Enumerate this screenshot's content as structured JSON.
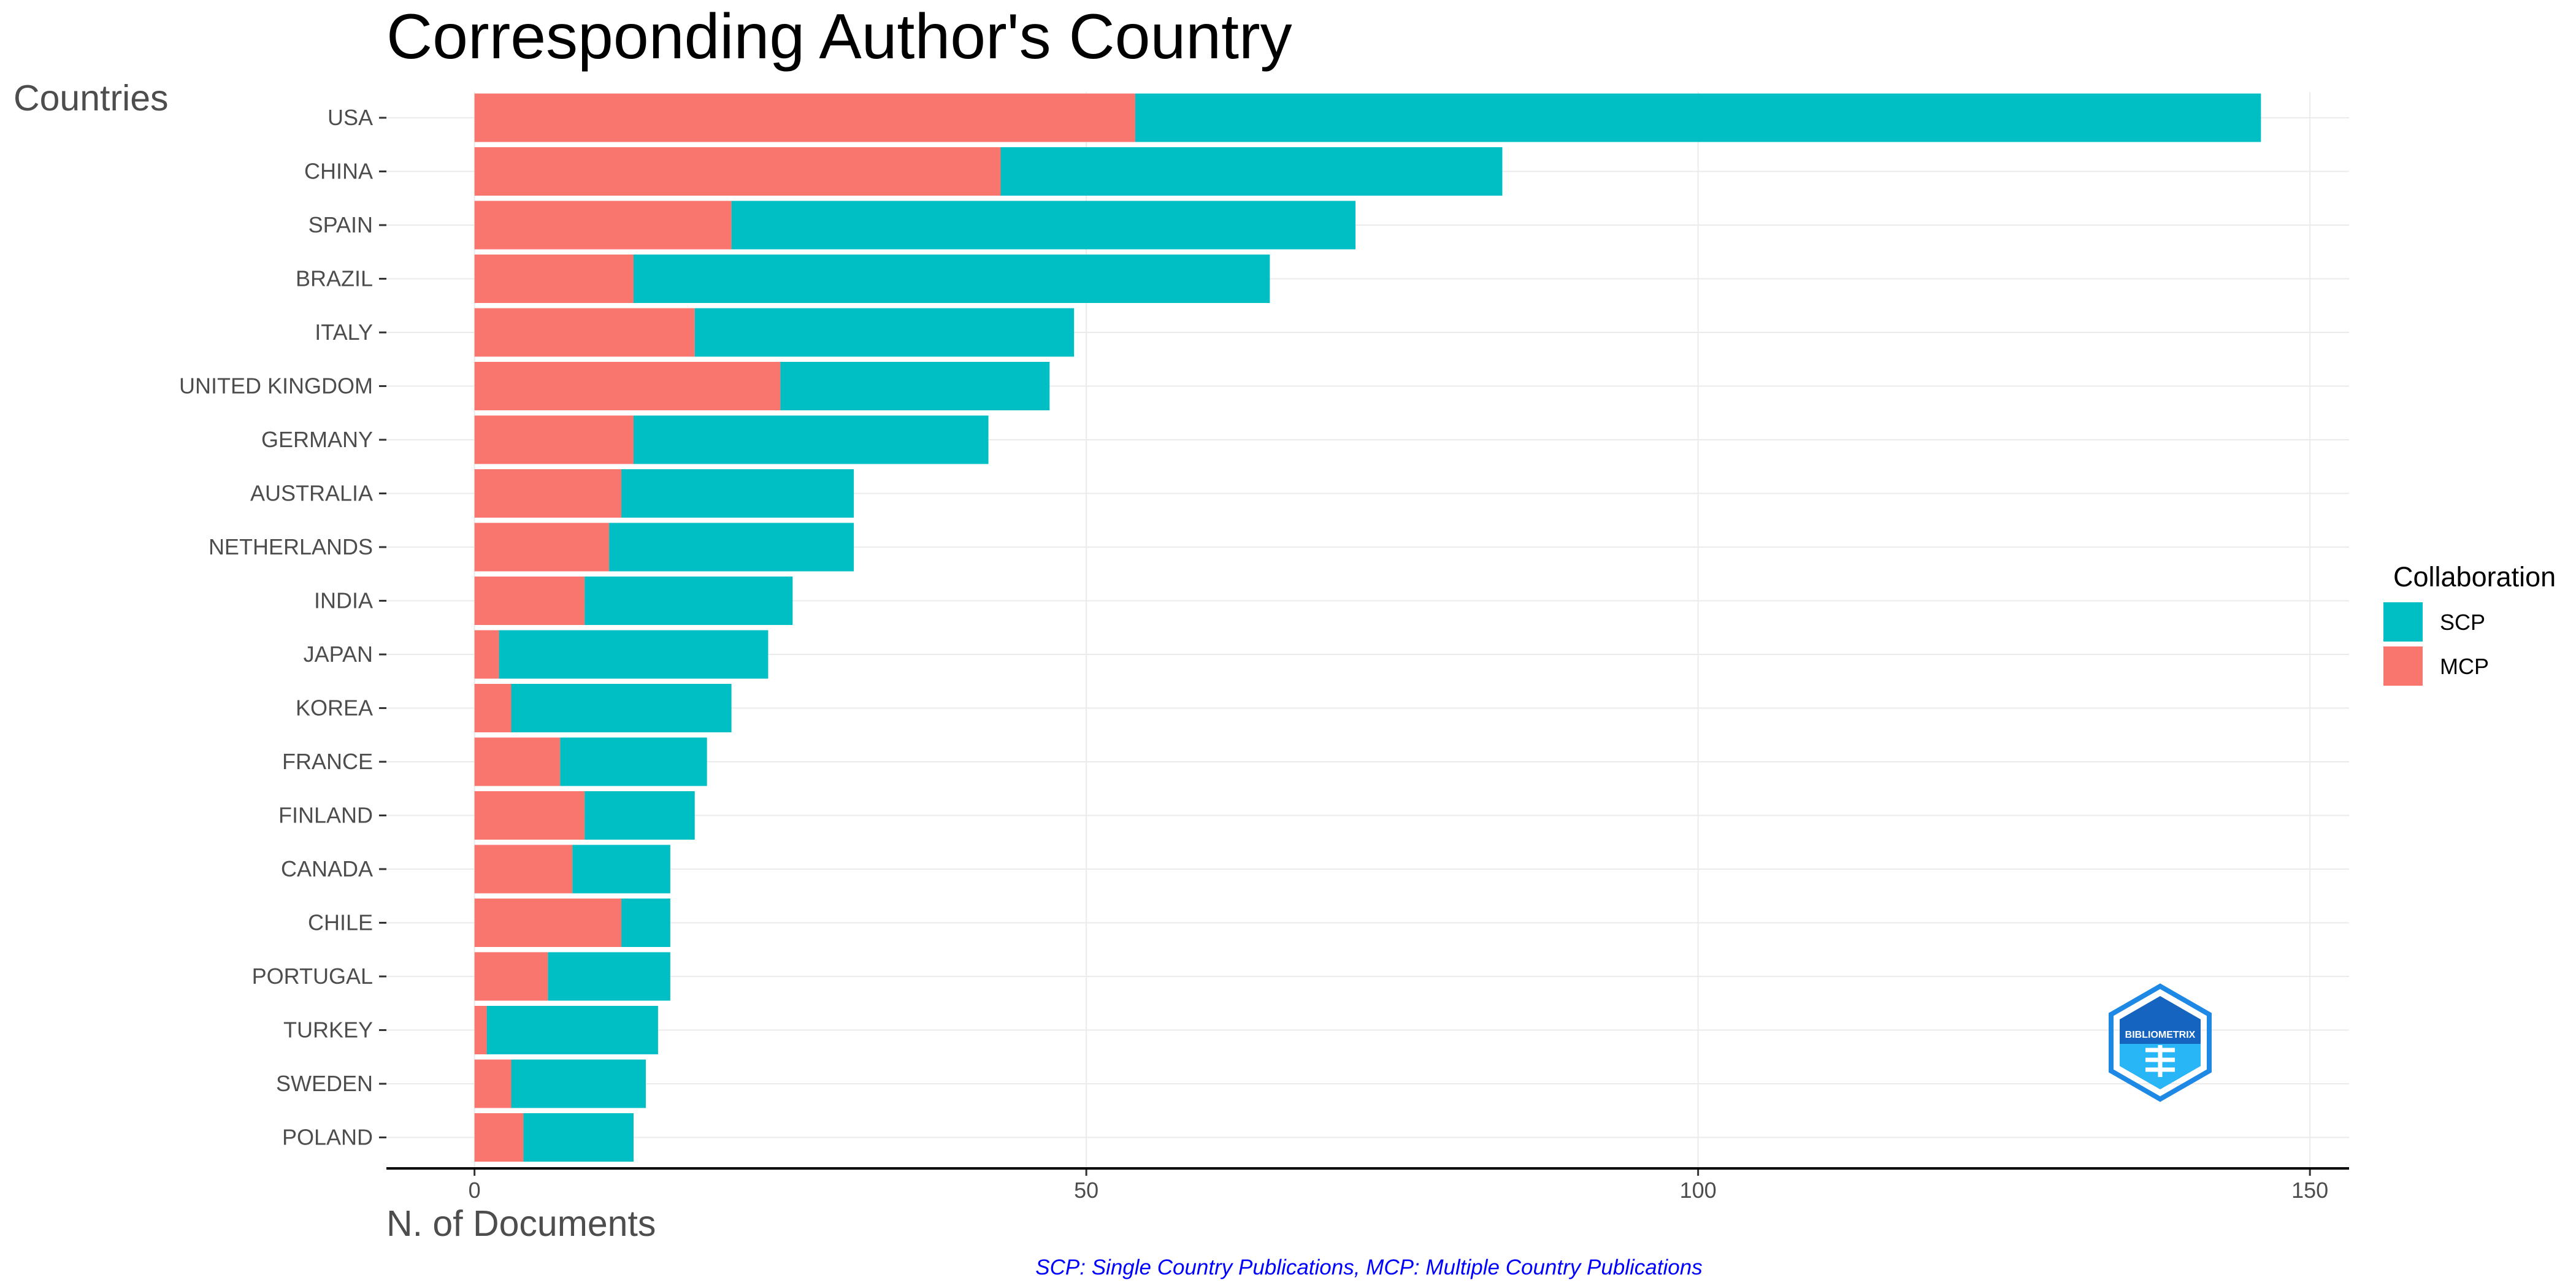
{
  "chart_data": {
    "type": "bar",
    "orientation": "horizontal",
    "stacked": true,
    "title": "Corresponding Author's Country",
    "xlabel": "N. of Documents",
    "ylabel": "Countries",
    "categories": [
      "USA",
      "CHINA",
      "SPAIN",
      "BRAZIL",
      "ITALY",
      "UNITED KINGDOM",
      "GERMANY",
      "AUSTRALIA",
      "NETHERLANDS",
      "INDIA",
      "JAPAN",
      "KOREA",
      "FRANCE",
      "FINLAND",
      "CANADA",
      "CHILE",
      "PORTUGAL",
      "TURKEY",
      "SWEDEN",
      "POLAND"
    ],
    "series": [
      {
        "name": "MCP",
        "color": "#F8766D",
        "values": [
          54,
          43,
          21,
          13,
          18,
          25,
          13,
          12,
          11,
          9,
          2,
          3,
          7,
          9,
          8,
          12,
          6,
          1,
          3,
          4
        ]
      },
      {
        "name": "SCP",
        "color": "#00BFC4",
        "values": [
          92,
          41,
          51,
          52,
          31,
          22,
          29,
          19,
          20,
          17,
          22,
          18,
          12,
          9,
          8,
          4,
          10,
          14,
          11,
          9
        ]
      }
    ],
    "xlim": [
      -7.2,
      153.2
    ],
    "xticks": [
      0,
      50,
      100,
      150
    ],
    "grid": true,
    "legend": {
      "title": "Collaboration",
      "position": "right",
      "items": [
        {
          "label": "SCP",
          "color": "#00BFC4"
        },
        {
          "label": "MCP",
          "color": "#F8766D"
        }
      ]
    },
    "caption": "SCP: Single Country Publications, MCP: Multiple Country Publications",
    "logo_text": "BIBLIOMETRIX"
  }
}
